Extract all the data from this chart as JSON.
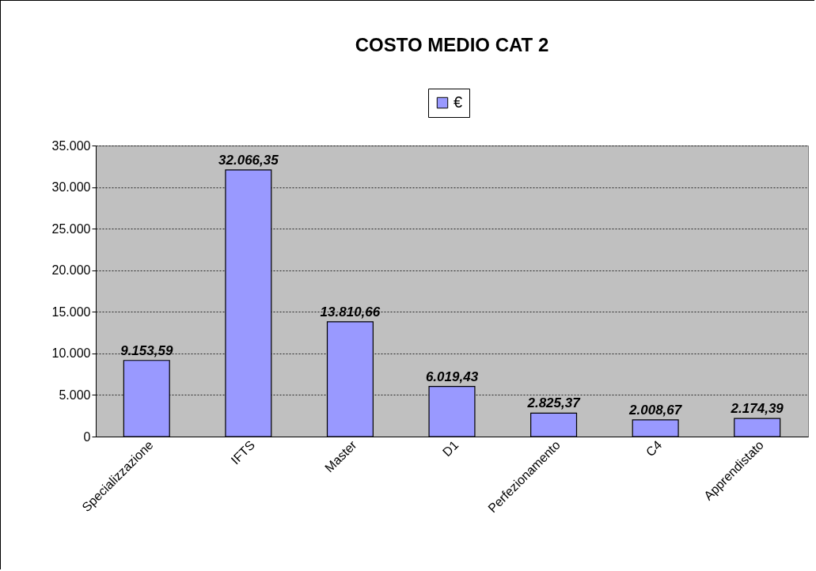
{
  "chart_data": {
    "type": "bar",
    "title": "COSTO MEDIO CAT 2",
    "categories": [
      "Specializzazione",
      "IFTS",
      "Master",
      "D1",
      "Perfezionamento",
      "C4",
      "Apprendistato"
    ],
    "series": [
      {
        "name": "€",
        "color": "#9999ff",
        "values": [
          9153.59,
          32066.35,
          13810.66,
          6019.43,
          2825.37,
          2008.67,
          2174.39
        ]
      }
    ],
    "value_labels": [
      "9.153,59",
      "32.066,35",
      "13.810,66",
      "6.019,43",
      "2.825,37",
      "2.008,67",
      "2.174,39"
    ],
    "ylim": [
      0,
      35000
    ],
    "yticks": [
      0,
      {
        "value": 5000,
        "label": "5.000"
      },
      {
        "value": 10000,
        "label": "10.000"
      },
      {
        "value": 15000,
        "label": "15.000"
      },
      {
        "value": 20000,
        "label": "20.000"
      },
      {
        "value": 25000,
        "label": "25.000"
      },
      {
        "value": 30000,
        "label": "30.000"
      },
      {
        "value": 35000,
        "label": "35.000"
      }
    ],
    "grid": "y",
    "legend": "top"
  }
}
